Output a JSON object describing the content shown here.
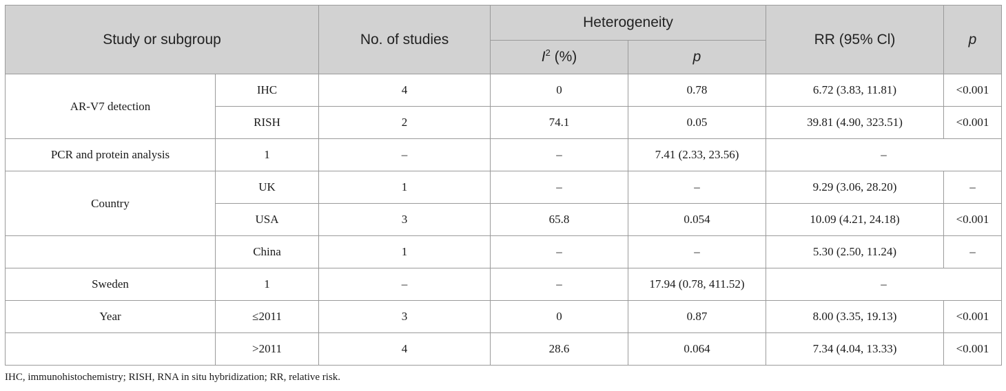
{
  "header": {
    "study": "Study or subgroup",
    "num_studies": "No. of studies",
    "heterogeneity": "Heterogeneity",
    "i2_letter": "I",
    "i2_sup": "2",
    "i2_unit": "(%)",
    "p_het": "p",
    "rr": "RR (95% Cl)",
    "p": "p"
  },
  "rows": {
    "ihc": {
      "group": "AR-V7 detection",
      "sub": "IHC",
      "n": "4",
      "i2": "0",
      "p_het": "0.78",
      "rr": "6.72 (3.83, 11.81)",
      "p": "<0.001"
    },
    "rish": {
      "sub": "RISH",
      "n": "2",
      "i2": "74.1",
      "p_het": "0.05",
      "rr": "39.81 (4.90, 323.51)",
      "p": "<0.001"
    },
    "pcr": {
      "group": "PCR and protein analysis",
      "n": "1",
      "i2": "–",
      "p_het": "–",
      "rr": "7.41 (2.33, 23.56)",
      "p": "–"
    },
    "uk": {
      "group": "Country",
      "sub": "UK",
      "n": "1",
      "i2": "–",
      "p_het": "–",
      "rr": "9.29 (3.06, 28.20)",
      "p": "–"
    },
    "usa": {
      "sub": "USA",
      "n": "3",
      "i2": "65.8",
      "p_het": "0.054",
      "rr": "10.09 (4.21, 24.18)",
      "p": "<0.001"
    },
    "china": {
      "sub": "China",
      "n": "1",
      "i2": "–",
      "p_het": "–",
      "rr": "5.30 (2.50, 11.24)",
      "p": "–"
    },
    "sweden": {
      "group": "Sweden",
      "n": "1",
      "i2": "–",
      "p_het": "–",
      "rr": "17.94 (0.78, 411.52)",
      "p": "–"
    },
    "y2011": {
      "group": "Year",
      "sub": "≤2011",
      "n": "3",
      "i2": "0",
      "p_het": "0.87",
      "rr": "8.00 (3.35, 19.13)",
      "p": "<0.001"
    },
    "y2012": {
      "sub": ">2011",
      "n": "4",
      "i2": "28.6",
      "p_het": "0.064",
      "rr": "7.34 (4.04, 13.33)",
      "p": "<0.001"
    }
  },
  "footnote": "IHC, immunohistochemistry; RISH, RNA in situ hybridization; RR, relative risk."
}
